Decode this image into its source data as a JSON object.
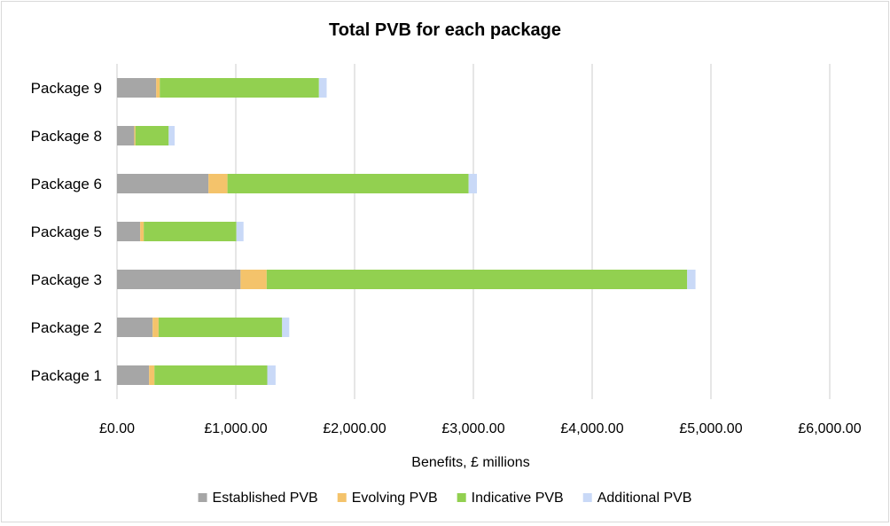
{
  "chart_data": {
    "type": "bar",
    "orientation": "horizontal",
    "stacked": true,
    "title": "Total PVB for each package",
    "xlabel": "Benefits, £ millions",
    "ylabel": "",
    "xlim": [
      0,
      6000
    ],
    "x_tick_values": [
      0,
      1000,
      2000,
      3000,
      4000,
      5000,
      6000
    ],
    "x_tick_labels": [
      "£0.00",
      "£1,000.00",
      "£2,000.00",
      "£3,000.00",
      "£4,000.00",
      "£5,000.00",
      "£6,000.00"
    ],
    "grid": "vertical",
    "legend_position": "bottom",
    "categories": [
      "Package 9",
      "Package 8",
      "Package 6",
      "Package 5",
      "Package 3",
      "Package 2",
      "Package 1"
    ],
    "series": [
      {
        "name": "Established PVB",
        "color": "#a6a6a6",
        "values": [
          330,
          145,
          770,
          195,
          1040,
          300,
          270
        ]
      },
      {
        "name": "Evolving PVB",
        "color": "#f4c36b",
        "values": [
          30,
          10,
          160,
          30,
          220,
          50,
          45
        ]
      },
      {
        "name": "Indicative PVB",
        "color": "#92d050",
        "values": [
          1340,
          280,
          2030,
          780,
          3540,
          1040,
          950
        ]
      },
      {
        "name": "Additional PVB",
        "color": "#c9d9f7",
        "values": [
          65,
          50,
          70,
          60,
          70,
          60,
          70
        ]
      }
    ]
  }
}
